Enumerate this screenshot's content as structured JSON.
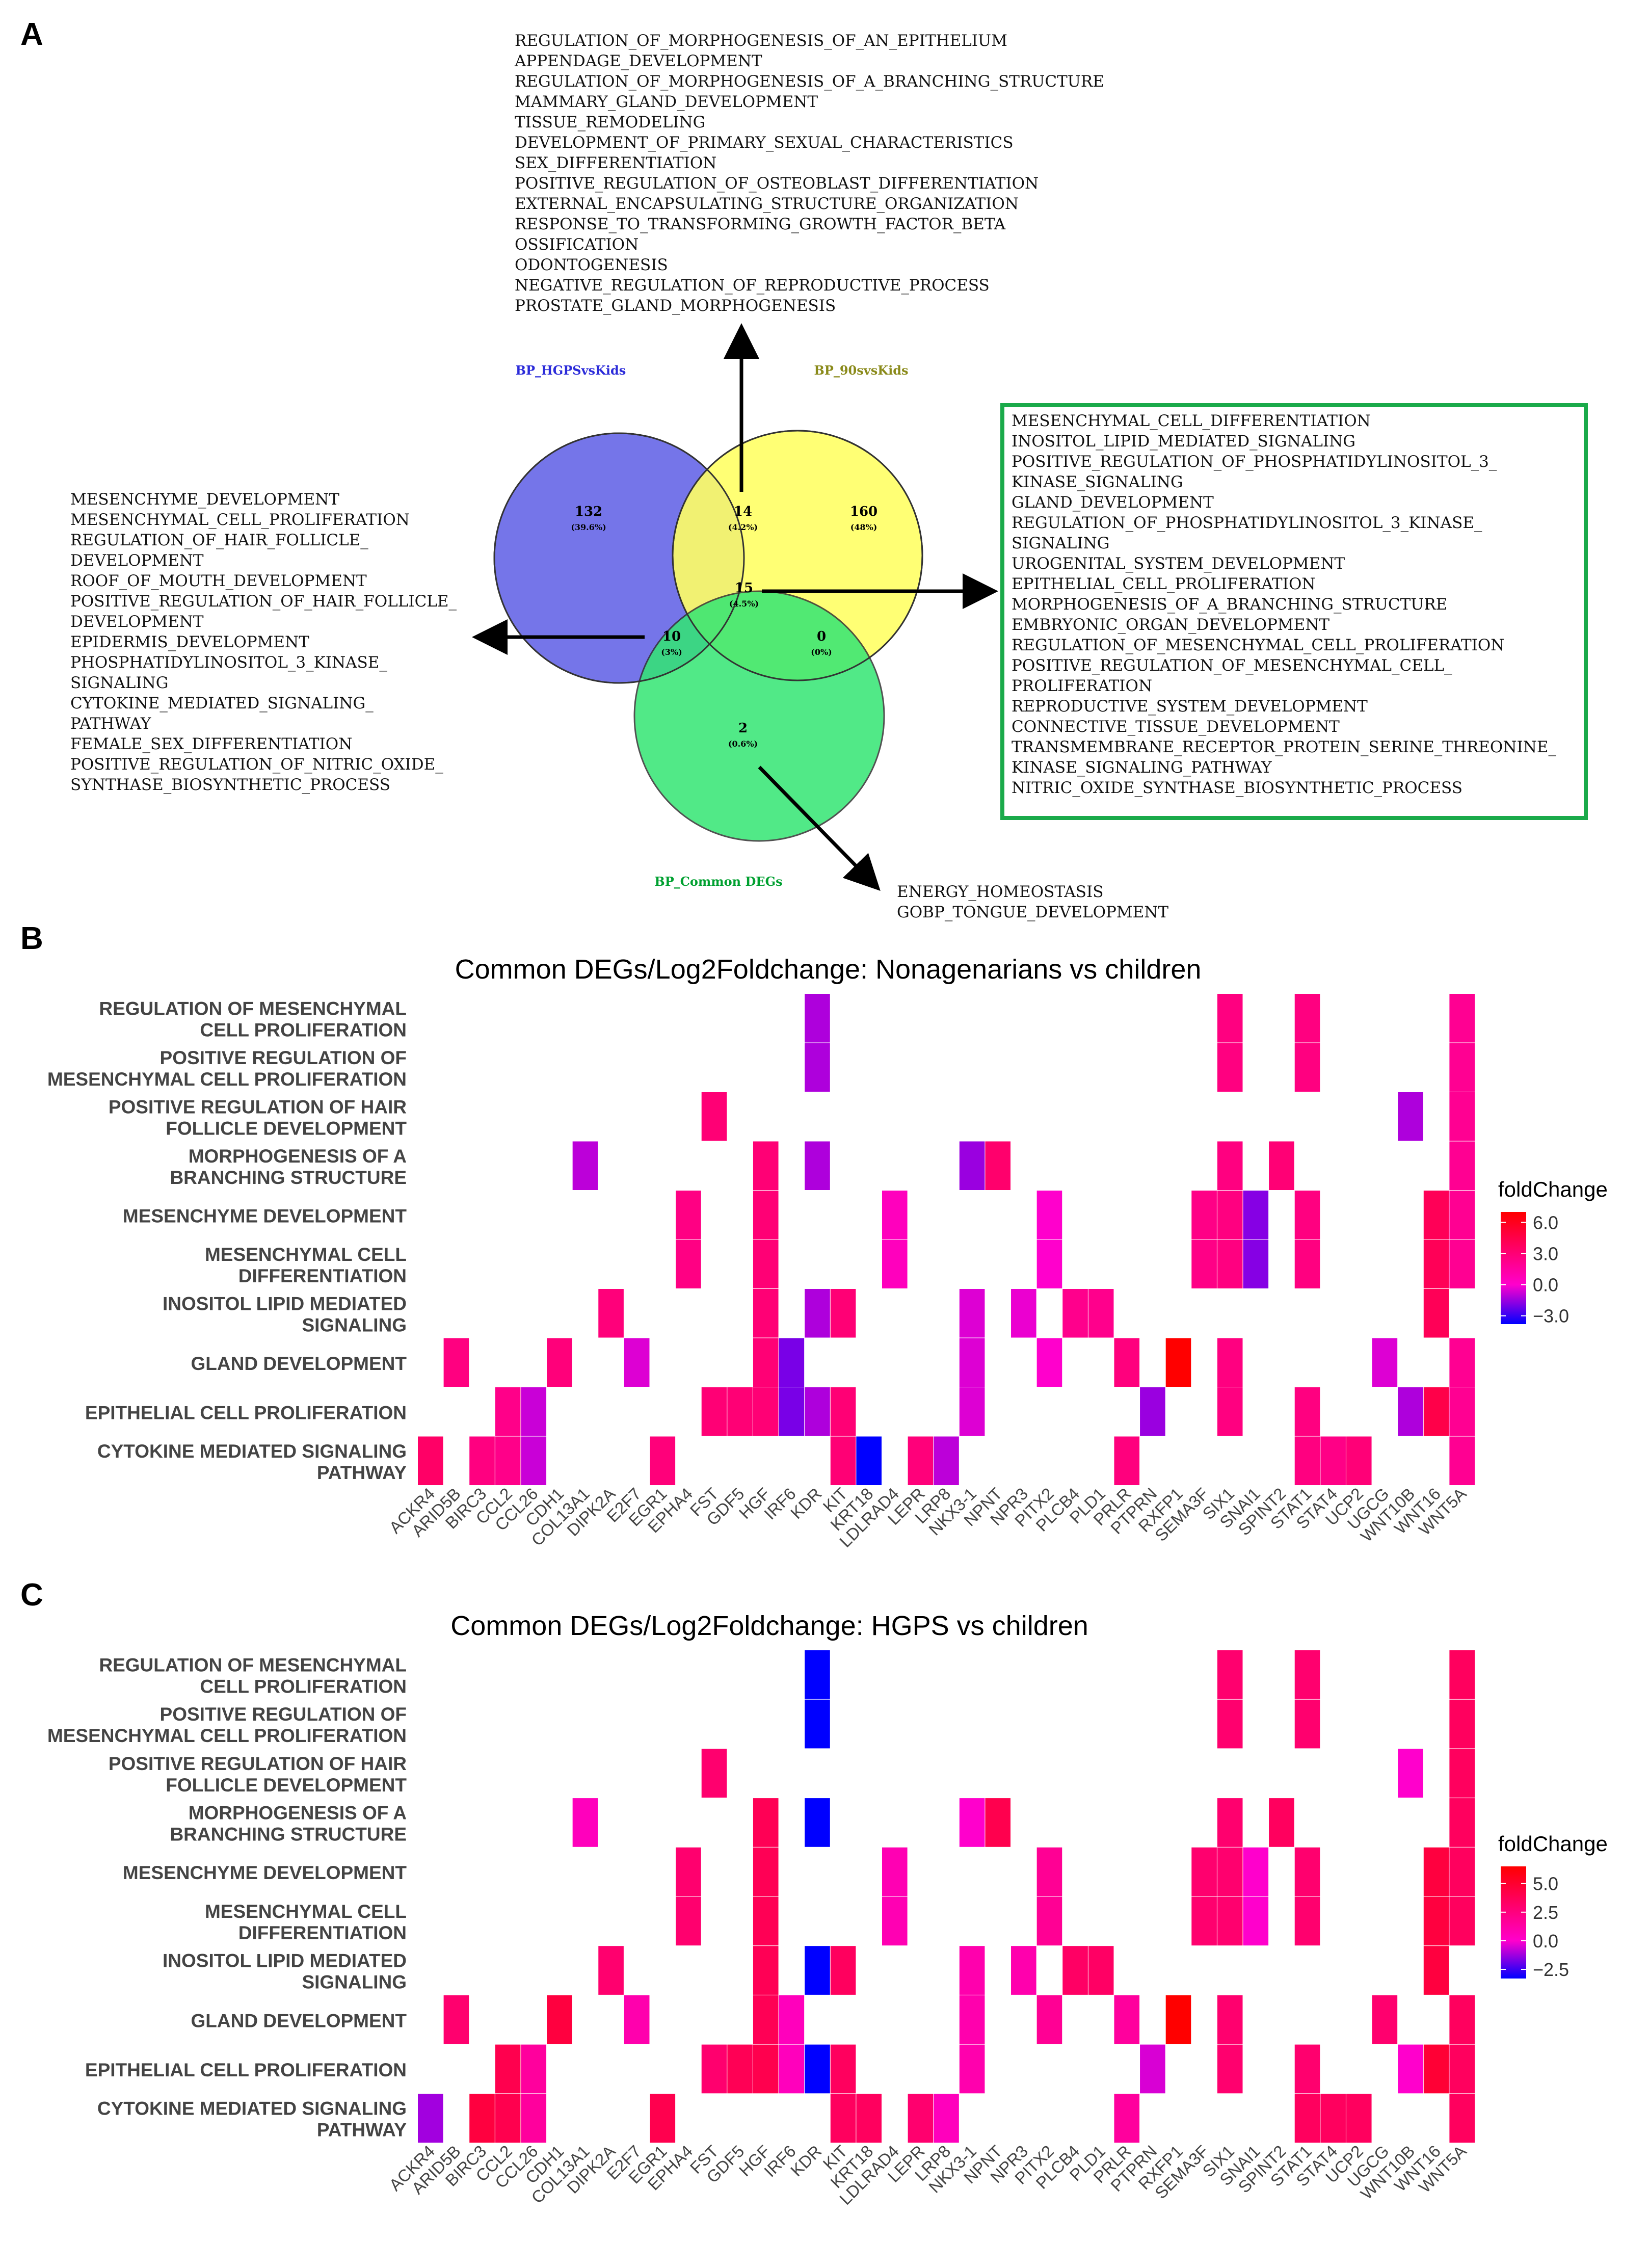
{
  "panel_labels": {
    "a": "A",
    "b": "B",
    "c": "C"
  },
  "venn": {
    "sets": [
      {
        "name": "BP_HGPSvsKids",
        "color": "#2b2bd9"
      },
      {
        "name": "BP_90svsKids",
        "color": "#8a8a1a"
      },
      {
        "name": "BP_Common DEGs",
        "color": "#00a030"
      }
    ],
    "regions": [
      {
        "id": "hgps_only",
        "count": "132",
        "pct": "(39.6%)"
      },
      {
        "id": "hgps_90",
        "count": "14",
        "pct": "(4.2%)"
      },
      {
        "id": "n90_only",
        "count": "160",
        "pct": "(48%)"
      },
      {
        "id": "all_three",
        "count": "15",
        "pct": "(4.5%)"
      },
      {
        "id": "hgps_common",
        "count": "10",
        "pct": "(3%)"
      },
      {
        "id": "n90_common",
        "count": "0",
        "pct": "(0%)"
      },
      {
        "id": "common_only",
        "count": "2",
        "pct": "(0.6%)"
      }
    ],
    "top_terms": [
      "REGULATION_OF_MORPHOGENESIS_OF_AN_EPITHELIUM",
      "APPENDAGE_DEVELOPMENT",
      "REGULATION_OF_MORPHOGENESIS_OF_A_BRANCHING_STRUCTURE",
      "MAMMARY_GLAND_DEVELOPMENT",
      "TISSUE_REMODELING",
      "DEVELOPMENT_OF_PRIMARY_SEXUAL_CHARACTERISTICS",
      "SEX_DIFFERENTIATION",
      "POSITIVE_REGULATION_OF_OSTEOBLAST_DIFFERENTIATION",
      "EXTERNAL_ENCAPSULATING_STRUCTURE_ORGANIZATION",
      "RESPONSE_TO_TRANSFORMING_GROWTH_FACTOR_BETA",
      "OSSIFICATION",
      "ODONTOGENESIS",
      "NEGATIVE_REGULATION_OF_REPRODUCTIVE_PROCESS",
      "PROSTATE_GLAND_MORPHOGENESIS"
    ],
    "left_terms": [
      "MESENCHYME_DEVELOPMENT",
      "MESENCHYMAL_CELL_PROLIFERATION",
      "REGULATION_OF_HAIR_FOLLICLE_",
      "DEVELOPMENT",
      "ROOF_OF_MOUTH_DEVELOPMENT",
      "POSITIVE_REGULATION_OF_HAIR_FOLLICLE_",
      "DEVELOPMENT",
      "EPIDERMIS_DEVELOPMENT",
      "PHOSPHATIDYLINOSITOL_3_KINASE_",
      "SIGNALING",
      "CYTOKINE_MEDIATED_SIGNALING_",
      "PATHWAY",
      "FEMALE_SEX_DIFFERENTIATION",
      "POSITIVE_REGULATION_OF_NITRIC_OXIDE_",
      "SYNTHASE_BIOSYNTHETIC_PROCESS"
    ],
    "right_terms": [
      "MESENCHYMAL_CELL_DIFFERENTIATION",
      "INOSITOL_LIPID_MEDIATED_SIGNALING",
      "POSITIVE_REGULATION_OF_PHOSPHATIDYLINOSITOL_3_",
      "KINASE_SIGNALING",
      "GLAND_DEVELOPMENT",
      "REGULATION_OF_PHOSPHATIDYLINOSITOL_3_KINASE_",
      "SIGNALING",
      "UROGENITAL_SYSTEM_DEVELOPMENT",
      "EPITHELIAL_CELL_PROLIFERATION",
      "MORPHOGENESIS_OF_A_BRANCHING_STRUCTURE",
      "EMBRYONIC_ORGAN_DEVELOPMENT",
      "REGULATION_OF_MESENCHYMAL_CELL_PROLIFERATION",
      "POSITIVE_REGULATION_OF_MESENCHYMAL_CELL_",
      "PROLIFERATION",
      "REPRODUCTIVE_SYSTEM_DEVELOPMENT",
      "CONNECTIVE_TISSUE_DEVELOPMENT",
      "TRANSMEMBRANE_RECEPTOR_PROTEIN_SERINE_THREONINE_",
      "KINASE_SIGNALING_PATHWAY",
      "NITRIC_OXIDE_SYNTHASE_BIOSYNTHETIC_PROCESS"
    ],
    "bottom_terms": [
      "ENERGY_HOMEOSTASIS",
      "GOBP_TONGUE_DEVELOPMENT"
    ]
  },
  "chart_data": [
    {
      "type": "heatmap",
      "title": "Common DEGs/Log2Foldchange: Nonagenarians vs children",
      "legend_title": "foldChange",
      "legend_ticks": [
        "6.0",
        "3.0",
        "0.0",
        "−3.0"
      ],
      "legend_tick_values": [
        6,
        3,
        0,
        -3
      ],
      "value_range": [
        -3.8,
        7
      ],
      "color_scale": [
        "#0000ff",
        "#ff00cc",
        "#ff0000"
      ],
      "genes": [
        "ACKR4",
        "ARID5B",
        "BIRC3",
        "CCL2",
        "CCL26",
        "CDH1",
        "COL13A1",
        "DIPK2A",
        "E2F7",
        "EGR1",
        "EPHA4",
        "FST",
        "GDF5",
        "HGF",
        "IRF6",
        "KDR",
        "KIT",
        "KRT18",
        "LDLRAD4",
        "LEPR",
        "LRP8",
        "NKX3-1",
        "NPNT",
        "NPR3",
        "PITX2",
        "PLCB4",
        "PLD1",
        "PRLR",
        "PTPRN",
        "RXFP1",
        "SEMA3F",
        "SIX1",
        "SNAI1",
        "SPINT2",
        "STAT1",
        "STAT4",
        "UCP2",
        "UGCG",
        "WNT10B",
        "WNT16",
        "WNT5A"
      ],
      "rows": [
        {
          "label": [
            "REGULATION OF MESENCHYMAL",
            "CELL PROLIFERATION"
          ],
          "cells": {
            "KDR": -1.2,
            "SIX1": 2.6,
            "STAT1": 2.6,
            "WNT5A": 2.0
          }
        },
        {
          "label": [
            "POSITIVE REGULATION OF",
            "MESENCHYMAL CELL PROLIFERATION"
          ],
          "cells": {
            "KDR": -1.2,
            "SIX1": 2.6,
            "STAT1": 2.6,
            "WNT5A": 2.0
          }
        },
        {
          "label": [
            "POSITIVE REGULATION OF HAIR",
            "FOLLICLE DEVELOPMENT"
          ],
          "cells": {
            "FST": 3.0,
            "WNT10B": -1.2,
            "WNT5A": 2.0
          }
        },
        {
          "label": [
            "MORPHOGENESIS OF A",
            "BRANCHING STRUCTURE"
          ],
          "cells": {
            "COL13A1": -1.0,
            "HGF": 3.0,
            "KDR": -1.2,
            "NKX3-1": -1.5,
            "NPNT": 3.3,
            "SIX1": 2.6,
            "SPINT2": 3.0,
            "WNT5A": 2.0
          }
        },
        {
          "label": [
            "MESENCHYME DEVELOPMENT"
          ],
          "cells": {
            "EPHA4": 2.5,
            "HGF": 3.0,
            "LDLRAD4": 0.5,
            "PITX2": 0.0,
            "SEMA3F": 2.4,
            "SIX1": 2.6,
            "SNAI1": -1.8,
            "STAT1": 2.6,
            "WNT16": 4.0,
            "WNT5A": 2.0
          }
        },
        {
          "label": [
            "MESENCHYMAL CELL",
            "DIFFERENTIATION"
          ],
          "cells": {
            "EPHA4": 2.5,
            "HGF": 3.0,
            "LDLRAD4": 0.5,
            "PITX2": 0.0,
            "SEMA3F": 2.4,
            "SIX1": 2.6,
            "SNAI1": -1.8,
            "STAT1": 2.6,
            "WNT16": 4.0,
            "WNT5A": 2.0
          }
        },
        {
          "label": [
            "INOSITOL LIPID MEDIATED",
            "SIGNALING"
          ],
          "cells": {
            "DIPK2A": 2.8,
            "HGF": 3.0,
            "KDR": -1.2,
            "KIT": 3.0,
            "NKX3-1": -0.5,
            "NPR3": -0.3,
            "PLCB4": 2.2,
            "PLD1": 2.2,
            "WNT16": 4.0
          }
        },
        {
          "label": [
            "GLAND DEVELOPMENT"
          ],
          "cells": {
            "ARID5B": 2.6,
            "CDH1": 2.8,
            "E2F7": -0.5,
            "HGF": 3.0,
            "IRF6": -2.0,
            "NKX3-1": -0.5,
            "PITX2": 0.0,
            "PRLR": 2.7,
            "RXFP1": 7.0,
            "SIX1": 2.6,
            "UGCG": -0.5,
            "WNT5A": 2.0
          }
        },
        {
          "label": [
            "EPITHELIAL CELL PROLIFERATION"
          ],
          "cells": {
            "CCL2": 2.3,
            "CCL26": -0.8,
            "FST": 3.0,
            "GDF5": 3.0,
            "HGF": 3.0,
            "IRF6": -2.0,
            "KDR": -1.2,
            "KIT": 3.0,
            "NKX3-1": -0.5,
            "PTPRN": -1.5,
            "SIX1": 2.6,
            "STAT1": 2.6,
            "WNT10B": -1.2,
            "WNT16": 4.5,
            "WNT5A": 2.0
          }
        },
        {
          "label": [
            "CYTOKINE MEDIATED SIGNALING",
            "PATHWAY"
          ],
          "cells": {
            "ACKR4": 3.5,
            "BIRC3": 2.6,
            "CCL2": 2.3,
            "CCL26": -0.8,
            "EGR1": 2.8,
            "KIT": 3.0,
            "KRT18": -3.8,
            "LEPR": 2.8,
            "LRP8": -1.0,
            "PRLR": 2.7,
            "STAT1": 2.6,
            "STAT4": 2.4,
            "UCP2": 2.9,
            "WNT5A": 2.0
          }
        }
      ]
    },
    {
      "type": "heatmap",
      "title": "Common DEGs/Log2Foldchange: HGPS vs children",
      "legend_title": "foldChange",
      "legend_ticks": [
        "5.0",
        "2.5",
        "0.0",
        "−2.5"
      ],
      "legend_tick_values": [
        5,
        2.5,
        0,
        -2.5
      ],
      "value_range": [
        -3.3,
        6.5
      ],
      "color_scale": [
        "#0000ff",
        "#ff00cc",
        "#ff0000"
      ],
      "genes": [
        "ACKR4",
        "ARID5B",
        "BIRC3",
        "CCL2",
        "CCL26",
        "CDH1",
        "COL13A1",
        "DIPK2A",
        "E2F7",
        "EGR1",
        "EPHA4",
        "FST",
        "GDF5",
        "HGF",
        "IRF6",
        "KDR",
        "KIT",
        "KRT18",
        "LDLRAD4",
        "LEPR",
        "LRP8",
        "NKX3-1",
        "NPNT",
        "NPR3",
        "PITX2",
        "PLCB4",
        "PLD1",
        "PRLR",
        "PTPRN",
        "RXFP1",
        "SEMA3F",
        "SIX1",
        "SNAI1",
        "SPINT2",
        "STAT1",
        "STAT4",
        "UCP2",
        "UGCG",
        "WNT10B",
        "WNT16",
        "WNT5A"
      ],
      "rows": [
        {
          "label": [
            "REGULATION OF MESENCHYMAL",
            "CELL PROLIFERATION"
          ],
          "cells": {
            "KDR": -3.3,
            "SIX1": 3.0,
            "STAT1": 3.0,
            "WNT5A": 3.5
          }
        },
        {
          "label": [
            "POSITIVE REGULATION OF",
            "MESENCHYMAL CELL PROLIFERATION"
          ],
          "cells": {
            "KDR": -3.3,
            "SIX1": 3.0,
            "STAT1": 3.0,
            "WNT5A": 3.5
          }
        },
        {
          "label": [
            "POSITIVE REGULATION OF HAIR",
            "FOLLICLE DEVELOPMENT"
          ],
          "cells": {
            "FST": 3.0,
            "WNT10B": 0.0,
            "WNT5A": 3.5
          }
        },
        {
          "label": [
            "MORPHOGENESIS OF A",
            "BRANCHING STRUCTURE"
          ],
          "cells": {
            "COL13A1": 0.5,
            "HGF": 3.8,
            "KDR": -3.3,
            "NKX3-1": 0.0,
            "NPNT": 4.0,
            "SIX1": 3.0,
            "SPINT2": 3.5,
            "WNT5A": 3.5
          }
        },
        {
          "label": [
            "MESENCHYME DEVELOPMENT"
          ],
          "cells": {
            "EPHA4": 3.0,
            "HGF": 3.8,
            "LDLRAD4": 0.8,
            "PITX2": 1.8,
            "SEMA3F": 3.0,
            "SIX1": 3.0,
            "SNAI1": 0.0,
            "STAT1": 3.0,
            "WNT16": 4.5,
            "WNT5A": 3.5
          }
        },
        {
          "label": [
            "MESENCHYMAL CELL",
            "DIFFERENTIATION"
          ],
          "cells": {
            "EPHA4": 3.0,
            "HGF": 3.8,
            "LDLRAD4": 0.8,
            "PITX2": 1.8,
            "SEMA3F": 3.0,
            "SIX1": 3.0,
            "SNAI1": 0.0,
            "STAT1": 3.0,
            "WNT16": 4.5,
            "WNT5A": 3.5
          }
        },
        {
          "label": [
            "INOSITOL LIPID MEDIATED",
            "SIGNALING"
          ],
          "cells": {
            "DIPK2A": 3.0,
            "HGF": 3.8,
            "KDR": -3.3,
            "KIT": 3.5,
            "NKX3-1": 1.0,
            "NPR3": 1.0,
            "PLCB4": 3.3,
            "PLD1": 3.3,
            "WNT16": 4.5
          }
        },
        {
          "label": [
            "GLAND DEVELOPMENT"
          ],
          "cells": {
            "ARID5B": 3.0,
            "CDH1": 4.5,
            "E2F7": 1.0,
            "HGF": 3.8,
            "IRF6": 0.5,
            "NKX3-1": 1.0,
            "PITX2": 1.8,
            "PRLR": 1.5,
            "RXFP1": 6.5,
            "SIX1": 3.0,
            "UGCG": 3.0,
            "WNT5A": 3.5
          }
        },
        {
          "label": [
            "EPITHELIAL CELL PROLIFERATION"
          ],
          "cells": {
            "CCL2": 4.0,
            "CCL26": 1.5,
            "FST": 3.0,
            "GDF5": 3.8,
            "HGF": 4.0,
            "IRF6": 0.5,
            "KDR": -3.3,
            "KIT": 3.5,
            "NKX3-1": 1.0,
            "PTPRN": -0.5,
            "SIX1": 3.0,
            "STAT1": 3.0,
            "WNT10B": 0.0,
            "WNT16": 4.8,
            "WNT5A": 3.5
          }
        },
        {
          "label": [
            "CYTOKINE MEDIATED SIGNALING",
            "PATHWAY"
          ],
          "cells": {
            "ACKR4": -1.2,
            "BIRC3": 4.5,
            "CCL2": 4.0,
            "CCL26": 1.5,
            "EGR1": 4.0,
            "KIT": 3.5,
            "KRT18": 3.5,
            "LEPR": 3.0,
            "LRP8": 0.5,
            "PRLR": 1.5,
            "STAT1": 3.5,
            "STAT4": 3.5,
            "UCP2": 3.5,
            "WNT5A": 3.5
          }
        }
      ]
    }
  ]
}
